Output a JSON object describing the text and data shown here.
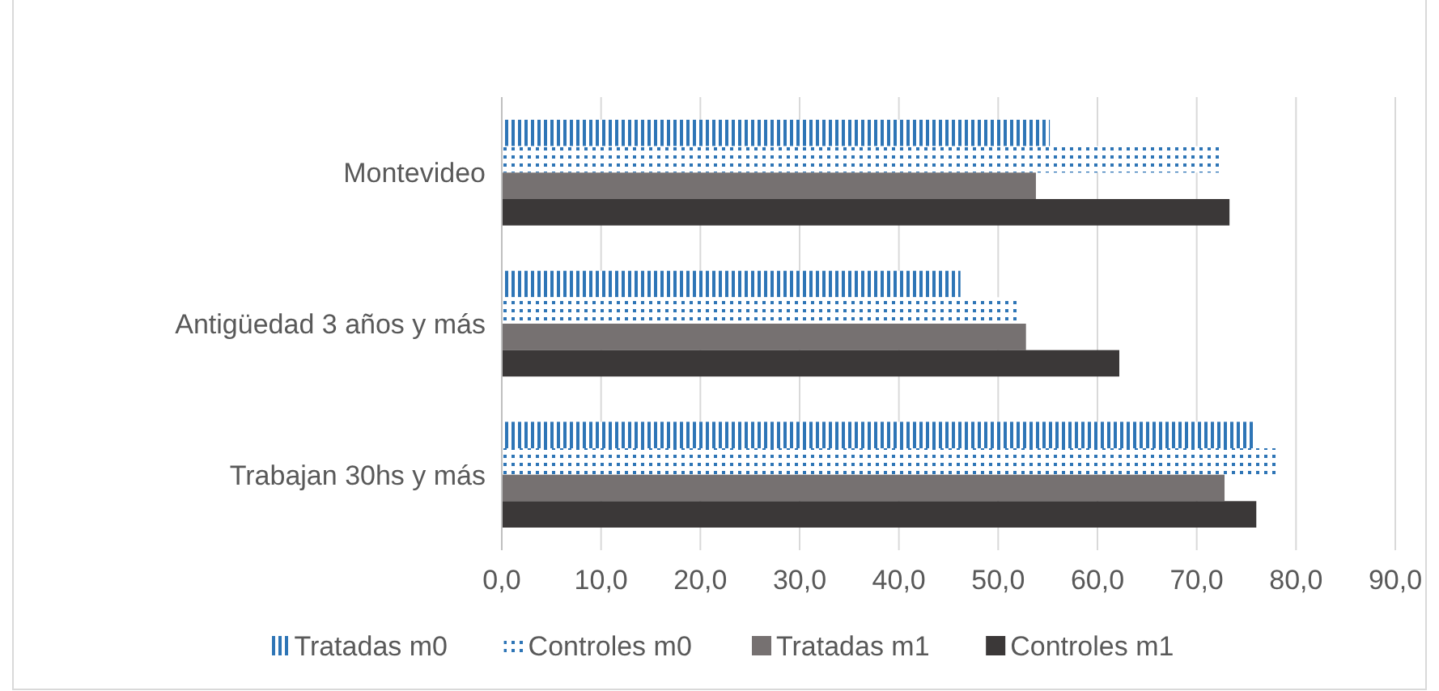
{
  "chart_data": {
    "type": "bar",
    "orientation": "horizontal",
    "categories": [
      "Montevideo",
      "Antigüedad 3 años y más",
      "Trabajan 30hs y más"
    ],
    "series": [
      {
        "name": "Tratadas m0",
        "color": "#2e75b6",
        "values": [
          55.2,
          46.2,
          75.8
        ]
      },
      {
        "name": "Controles m0",
        "color": "#2e75b6",
        "values": [
          72.3,
          51.9,
          78.1
        ]
      },
      {
        "name": "Tratadas m1",
        "color": "#767171",
        "values": [
          53.8,
          52.8,
          72.8
        ]
      },
      {
        "name": "Controles m1",
        "color": "#3b3838",
        "values": [
          73.3,
          62.2,
          76.0
        ]
      }
    ],
    "xlim": [
      0,
      90
    ],
    "xticks": [
      {
        "value": 0,
        "label": "0,0"
      },
      {
        "value": 10,
        "label": "10,0"
      },
      {
        "value": 20,
        "label": "20,0"
      },
      {
        "value": 30,
        "label": "30,0"
      },
      {
        "value": 40,
        "label": "40,0"
      },
      {
        "value": 50,
        "label": "50,0"
      },
      {
        "value": 60,
        "label": "60,0"
      },
      {
        "value": 70,
        "label": "70,0"
      },
      {
        "value": 80,
        "label": "80,0"
      },
      {
        "value": 90,
        "label": "90,0"
      }
    ],
    "grid": "x",
    "legend": "bottom"
  }
}
